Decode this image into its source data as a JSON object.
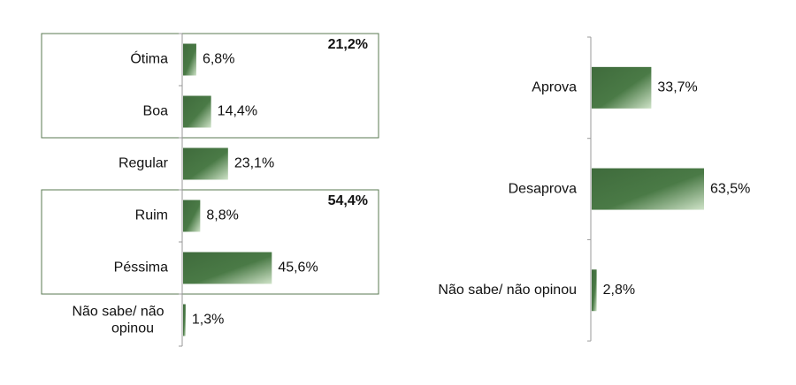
{
  "chart_data": [
    {
      "type": "bar",
      "orientation": "horizontal",
      "categories": [
        "Ótima",
        "Boa",
        "Regular",
        "Ruim",
        "Péssima",
        "Não sabe/ não opinou"
      ],
      "values": [
        6.8,
        14.4,
        23.1,
        8.8,
        45.6,
        1.3
      ],
      "value_labels": [
        "6,8%",
        "14,4%",
        "23,1%",
        "8,8%",
        "45,6%",
        "1,3%"
      ],
      "color": "#3f6b3c",
      "annotations": [
        {
          "text": "21,2%"
        },
        {
          "text": "54,4%"
        }
      ]
    },
    {
      "type": "bar",
      "orientation": "horizontal",
      "categories": [
        "Aprova",
        "Desaprova",
        "Não sabe/ não opinou"
      ],
      "values": [
        33.7,
        63.5,
        2.8
      ],
      "value_labels": [
        "33,7%",
        "63,5%",
        "2,8%"
      ],
      "color": "#3f6b3c"
    }
  ]
}
